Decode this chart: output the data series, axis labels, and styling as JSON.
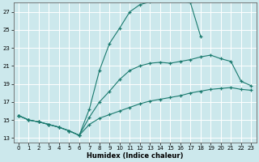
{
  "xlabel": "Humidex (Indice chaleur)",
  "background_color": "#cce8ec",
  "grid_color": "#ffffff",
  "line_color": "#1a7a6e",
  "xlim": [
    -0.5,
    23.5
  ],
  "ylim": [
    12.5,
    28.0
  ],
  "xticks": [
    0,
    1,
    2,
    3,
    4,
    5,
    6,
    7,
    8,
    9,
    10,
    11,
    12,
    13,
    14,
    15,
    16,
    17,
    18,
    19,
    20,
    21,
    22,
    23
  ],
  "yticks": [
    13,
    15,
    17,
    19,
    21,
    23,
    25,
    27
  ],
  "curve_top": {
    "x": [
      0,
      1,
      2,
      3,
      4,
      5,
      6,
      7,
      8,
      9,
      10,
      11,
      12,
      13,
      14,
      15,
      16,
      17,
      18
    ],
    "y": [
      15.5,
      15.0,
      14.8,
      14.5,
      14.2,
      13.8,
      13.3,
      16.2,
      20.5,
      23.5,
      25.2,
      27.0,
      27.8,
      28.1,
      28.2,
      28.3,
      28.2,
      28.0,
      24.3
    ]
  },
  "curve_mid": {
    "x": [
      0,
      1,
      2,
      3,
      4,
      5,
      6,
      7,
      8,
      9,
      10,
      11,
      12,
      13,
      14,
      15,
      16,
      17,
      18,
      19,
      20,
      21,
      22,
      23
    ],
    "y": [
      15.5,
      15.0,
      14.8,
      14.5,
      14.2,
      13.8,
      13.3,
      15.3,
      17.0,
      18.2,
      19.5,
      20.5,
      21.0,
      21.3,
      21.4,
      21.3,
      21.5,
      21.7,
      22.0,
      22.2,
      21.8,
      21.5,
      19.3,
      18.8
    ]
  },
  "curve_bot": {
    "x": [
      0,
      1,
      2,
      3,
      4,
      5,
      6,
      7,
      8,
      9,
      10,
      11,
      12,
      13,
      14,
      15,
      16,
      17,
      18,
      19,
      20,
      21,
      22,
      23
    ],
    "y": [
      15.5,
      15.0,
      14.8,
      14.5,
      14.2,
      13.8,
      13.3,
      14.5,
      15.2,
      15.6,
      16.0,
      16.4,
      16.8,
      17.1,
      17.3,
      17.5,
      17.7,
      18.0,
      18.2,
      18.4,
      18.5,
      18.6,
      18.4,
      18.3
    ]
  }
}
